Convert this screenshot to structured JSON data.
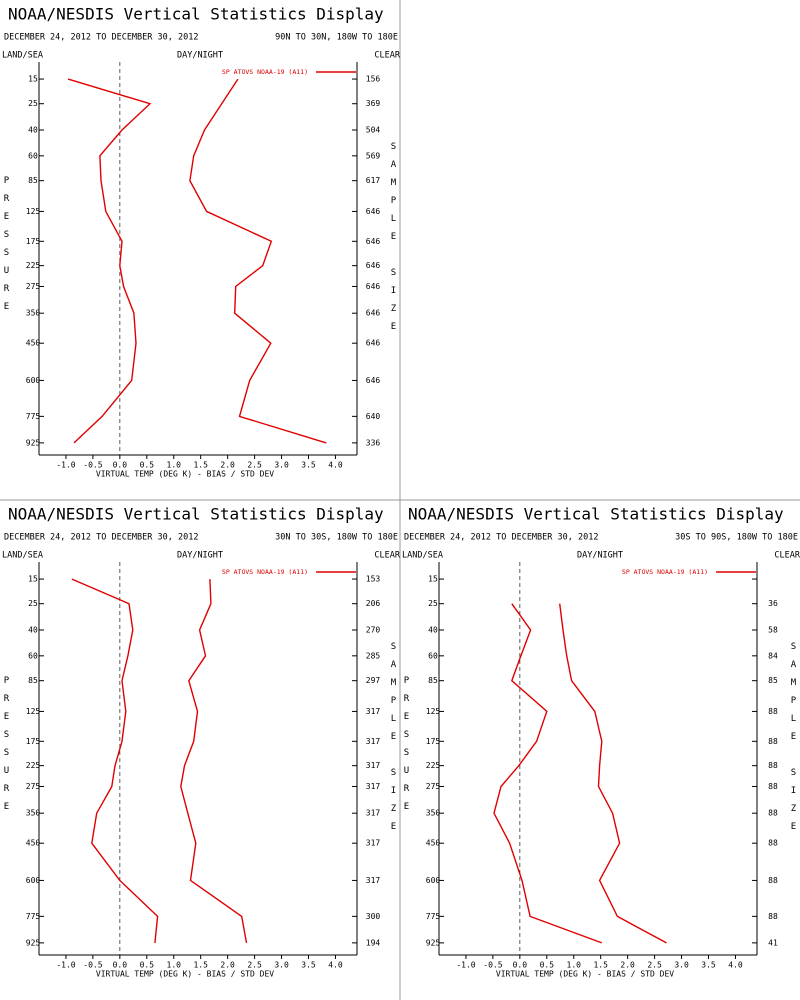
{
  "chart_data": [
    {
      "type": "line",
      "title": "NOAA/NESDIS Vertical Statistics Display",
      "date_range": "DECEMBER 24, 2012 TO DECEMBER 30, 2012",
      "region": "90N TO 30N, 180W TO 180E",
      "land_sea": "LAND/SEA",
      "day_night": "DAY/NIGHT",
      "clear": "CLEAR",
      "legend": "SP ATOVS NOAA-19 (A11)",
      "x_label": "VIRTUAL TEMP (DEG K) - BIAS / STD DEV",
      "y_label": "PRESSURE",
      "y2_label": "SAMPLE SIZE",
      "xlim": [
        -1.5,
        4.4
      ],
      "xticks": [
        {
          "value": -1.0,
          "label": "-1.0"
        },
        -0.5,
        {
          "value": 0,
          "label": "0.0"
        },
        0.5,
        {
          "value": 1.0,
          "label": "1.0"
        },
        1.5,
        {
          "value": 2.0,
          "label": "2.0"
        },
        2.5,
        {
          "value": 3.0,
          "label": "3.0"
        },
        3.5,
        {
          "value": 4.0,
          "label": "4.0"
        }
      ],
      "ylim": [
        10,
        1000
      ],
      "yticks": [
        15,
        25,
        40,
        60,
        85,
        125,
        175,
        225,
        275,
        350,
        450,
        600,
        775,
        925
      ],
      "levels": [
        15,
        25,
        40,
        60,
        85,
        125,
        175,
        225,
        275,
        350,
        450,
        600,
        775,
        925
      ],
      "sample_size": [
        156,
        369,
        504,
        569,
        617,
        646,
        646,
        646,
        646,
        646,
        646,
        646,
        640,
        336
      ],
      "series": [
        {
          "color": "#e00000",
          "values": [
            -0.96,
            0.56,
            0.04,
            -0.37,
            -0.35,
            -0.26,
            0.04,
            0.0,
            0.07,
            0.26,
            0.3,
            0.22,
            -0.33,
            -0.85
          ]
        },
        {
          "color": "#e00000",
          "values": [
            2.19,
            1.89,
            1.57,
            1.37,
            1.3,
            1.61,
            2.81,
            2.65,
            2.15,
            2.13,
            2.8,
            2.41,
            2.22,
            3.83
          ]
        }
      ]
    },
    {
      "type": "line",
      "title": "NOAA/NESDIS Vertical Statistics Display",
      "date_range": "DECEMBER 24, 2012 TO DECEMBER 30, 2012",
      "region": "30N TO 30S, 180W TO 180E",
      "land_sea": "LAND/SEA",
      "day_night": "DAY/NIGHT",
      "clear": "CLEAR",
      "legend": "SP ATOVS NOAA-19 (A11)",
      "x_label": "VIRTUAL TEMP (DEG K) - BIAS / STD DEV",
      "y_label": "PRESSURE",
      "y2_label": "SAMPLE SIZE",
      "xlim": [
        -1.5,
        4.4
      ],
      "xticks": [
        {
          "value": -1.0,
          "label": "-1.0"
        },
        -0.5,
        {
          "value": 0,
          "label": "0.0"
        },
        0.5,
        {
          "value": 1.0,
          "label": "1.0"
        },
        1.5,
        {
          "value": 2.0,
          "label": "2.0"
        },
        2.5,
        {
          "value": 3.0,
          "label": "3.0"
        },
        3.5,
        {
          "value": 4.0,
          "label": "4.0"
        }
      ],
      "ylim": [
        10,
        1000
      ],
      "yticks": [
        15,
        25,
        40,
        60,
        85,
        125,
        175,
        225,
        275,
        350,
        450,
        600,
        775,
        925
      ],
      "levels": [
        15,
        25,
        40,
        60,
        85,
        125,
        175,
        225,
        275,
        350,
        450,
        600,
        775,
        925
      ],
      "sample_size": [
        153,
        206,
        270,
        285,
        297,
        317,
        317,
        317,
        317,
        317,
        317,
        317,
        300,
        194
      ],
      "series": [
        {
          "color": "#e00000",
          "values": [
            -0.89,
            0.17,
            0.24,
            0.15,
            0.04,
            0.11,
            0.04,
            -0.09,
            -0.15,
            -0.43,
            -0.52,
            0.0,
            0.7,
            0.65
          ]
        },
        {
          "color": "#e00000",
          "values": [
            1.67,
            1.69,
            1.48,
            1.59,
            1.28,
            1.44,
            1.37,
            1.2,
            1.13,
            1.26,
            1.41,
            1.31,
            2.26,
            2.35
          ]
        }
      ]
    },
    {
      "type": "line",
      "title": "NOAA/NESDIS Vertical Statistics Display",
      "date_range": "DECEMBER 24, 2012 TO DECEMBER 30, 2012",
      "region": "30S TO 90S, 180W TO 180E",
      "land_sea": "LAND/SEA",
      "day_night": "DAY/NIGHT",
      "clear": "CLEAR",
      "legend": "SP ATOVS NOAA-19 (A11)",
      "x_label": "VIRTUAL TEMP (DEG K) - BIAS / STD DEV",
      "y_label": "PRESSURE",
      "y2_label": "SAMPLE SIZE",
      "xlim": [
        -1.5,
        4.4
      ],
      "xticks": [
        {
          "value": -1.0,
          "label": "-1.0"
        },
        -0.5,
        {
          "value": 0,
          "label": "0.0"
        },
        0.5,
        {
          "value": 1.0,
          "label": "1.0"
        },
        1.5,
        {
          "value": 2.0,
          "label": "2.0"
        },
        2.5,
        {
          "value": 3.0,
          "label": "3.0"
        },
        3.5,
        {
          "value": 4.0,
          "label": "4.0"
        }
      ],
      "ylim": [
        10,
        1000
      ],
      "yticks": [
        15,
        25,
        40,
        60,
        85,
        125,
        175,
        225,
        275,
        350,
        450,
        600,
        775,
        925
      ],
      "levels": [
        15,
        25,
        40,
        60,
        85,
        125,
        175,
        225,
        275,
        350,
        450,
        600,
        775,
        925
      ],
      "sample_size": [
        null,
        36,
        58,
        84,
        85,
        88,
        88,
        88,
        88,
        88,
        88,
        88,
        88,
        41
      ],
      "series": [
        {
          "color": "#e00000",
          "values": [
            null,
            -0.15,
            0.2,
            0.02,
            -0.15,
            0.5,
            0.31,
            -0.02,
            -0.35,
            -0.48,
            -0.19,
            0.04,
            0.19,
            1.52
          ]
        },
        {
          "color": "#e00000",
          "values": [
            null,
            0.74,
            0.8,
            0.87,
            0.96,
            1.39,
            1.52,
            1.48,
            1.46,
            1.72,
            1.85,
            1.48,
            1.81,
            2.72
          ]
        }
      ]
    }
  ]
}
